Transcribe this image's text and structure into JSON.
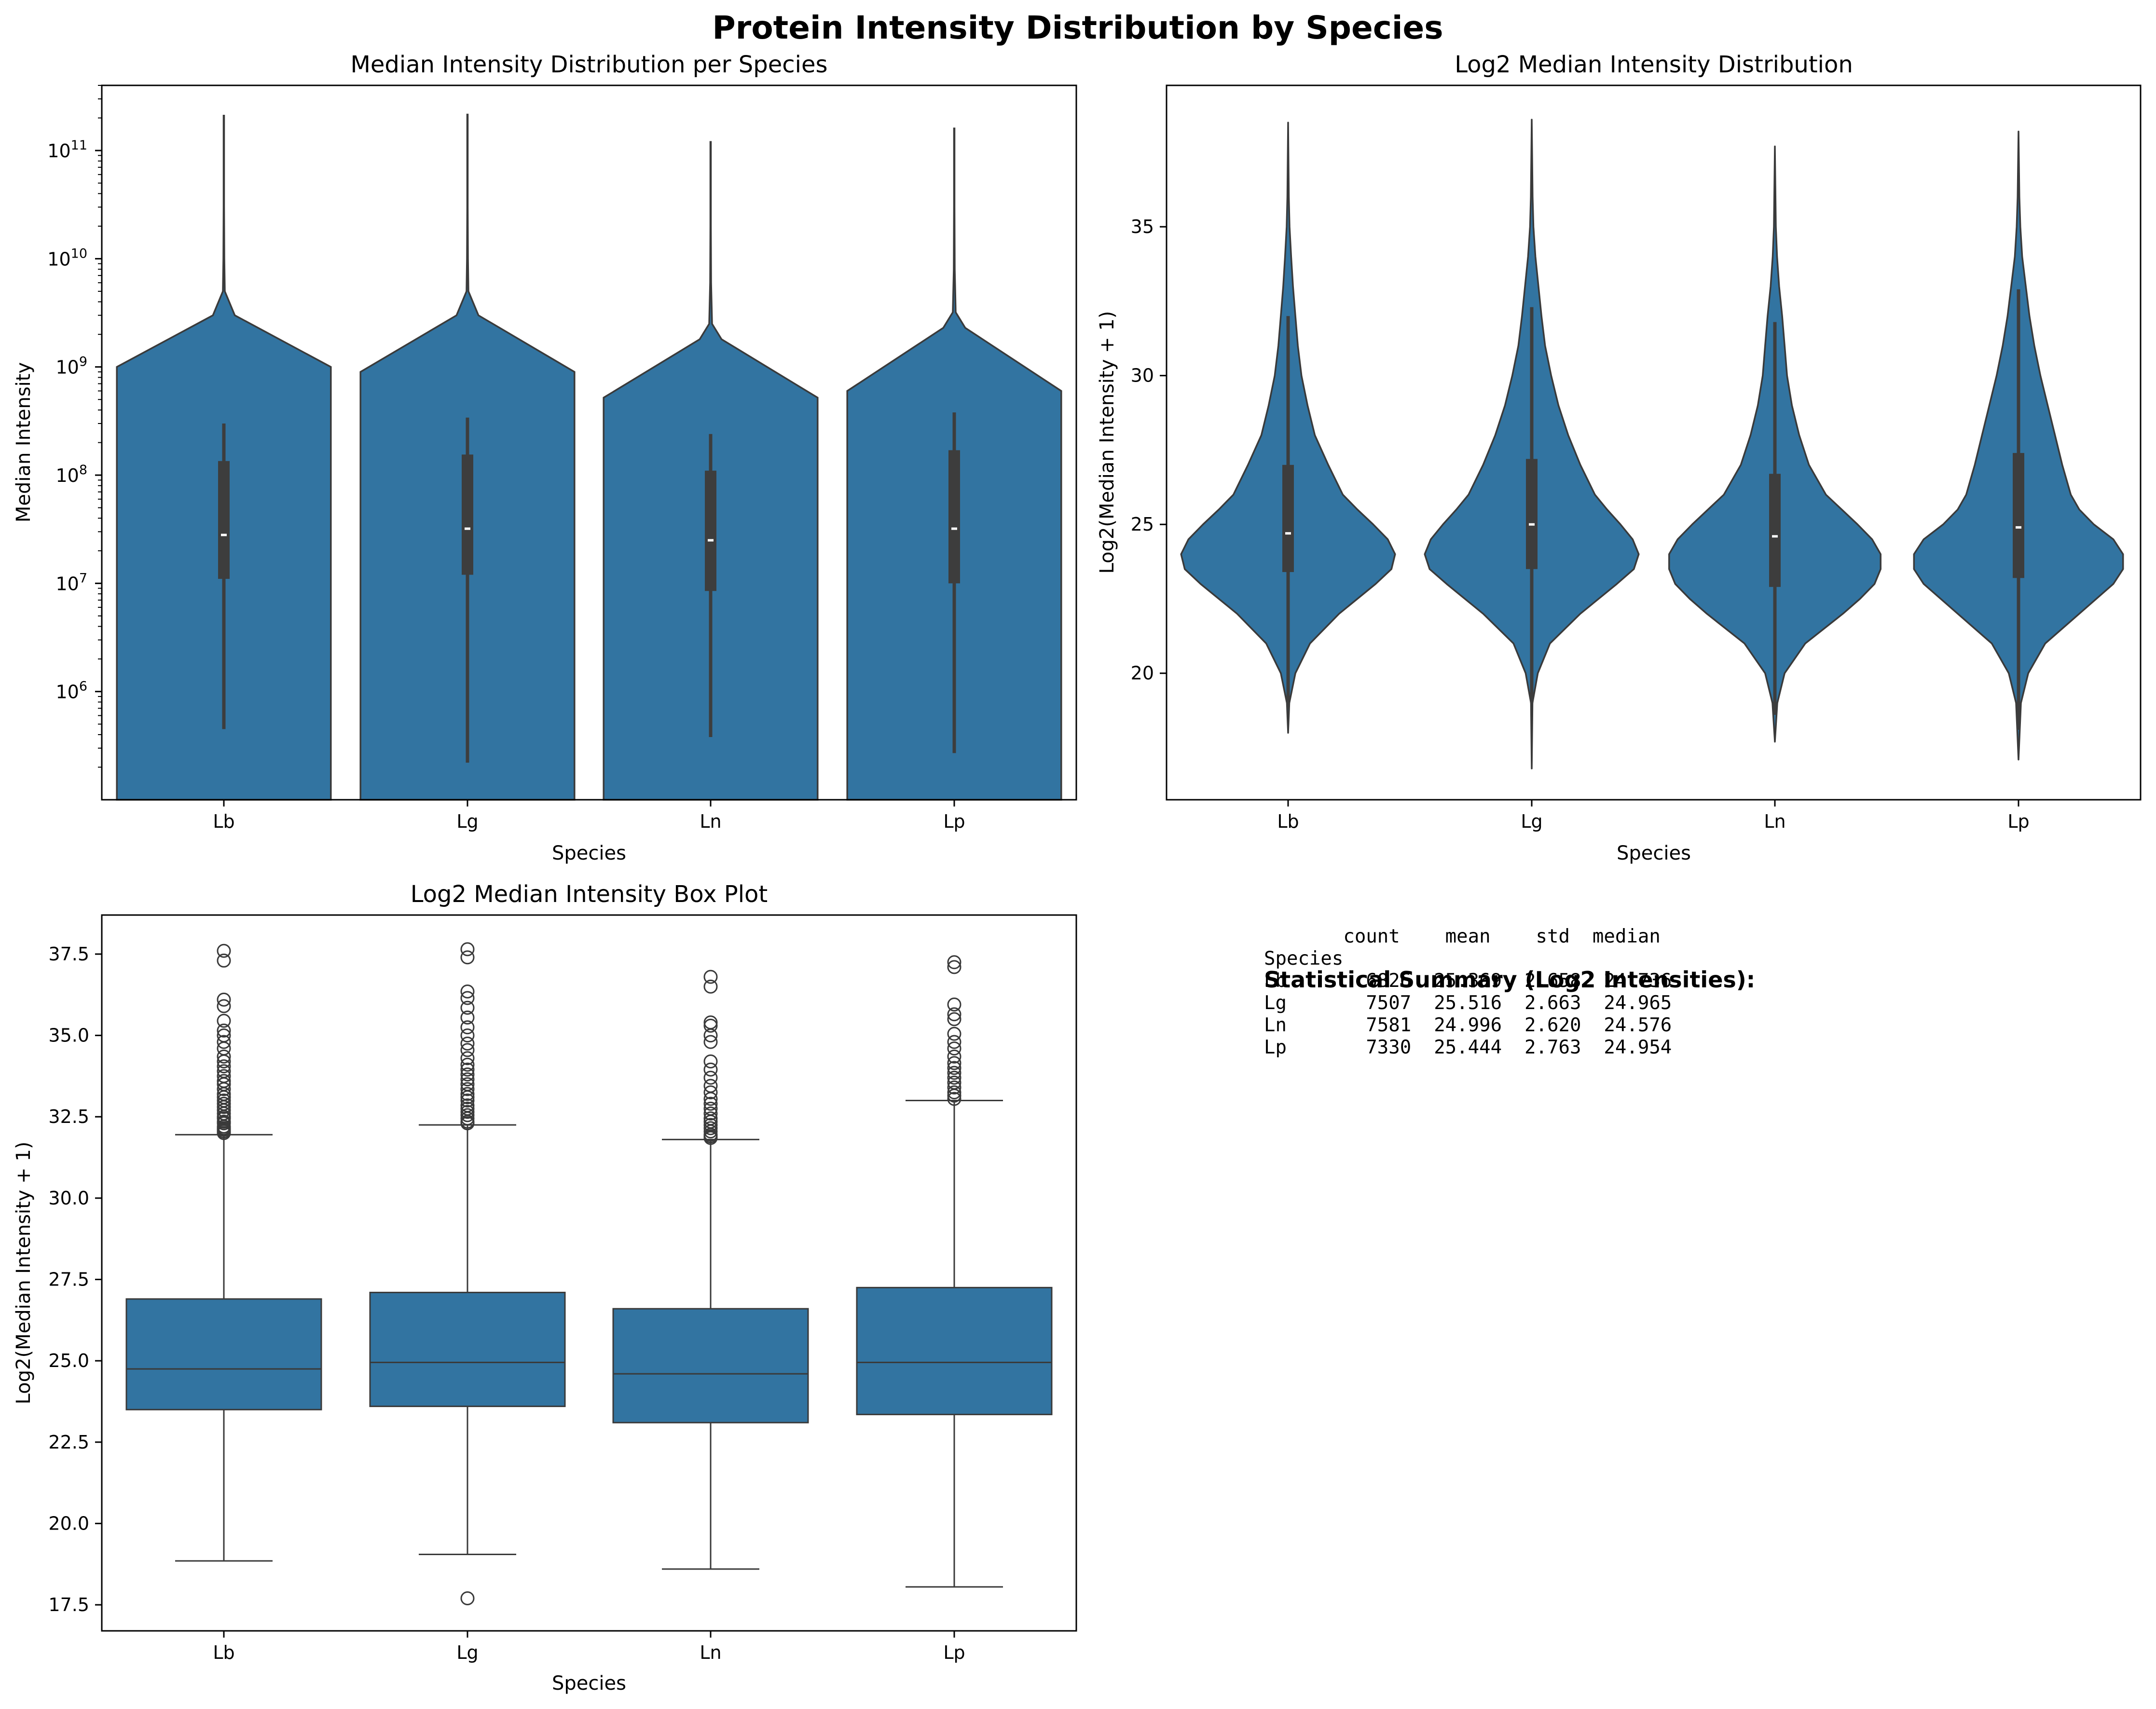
{
  "figure": {
    "suptitle": "Protein Intensity Distribution by Species"
  },
  "colors": {
    "fill": "#3274a1",
    "edge": "#3a3a3a",
    "inner_box": "#3d3d3d",
    "median_dot": "#ffffff"
  },
  "chart_data": [
    {
      "id": "violin_raw",
      "type": "violin",
      "title": "Median Intensity Distribution per Species",
      "xlabel": "Species",
      "ylabel": "Median Intensity",
      "yscale": "log",
      "categories": [
        "Lb",
        "Lg",
        "Ln",
        "Lp"
      ],
      "ylim": [
        100000,
        400000000000
      ],
      "y_ticks": [
        {
          "base": "10",
          "exp": "6",
          "value": 1000000
        },
        {
          "base": "10",
          "exp": "7",
          "value": 10000000
        },
        {
          "base": "10",
          "exp": "8",
          "value": 100000000
        },
        {
          "base": "10",
          "exp": "9",
          "value": 1000000000
        },
        {
          "base": "10",
          "exp": "10",
          "value": 10000000000
        },
        {
          "base": "10",
          "exp": "11",
          "value": 100000000000
        }
      ],
      "groups": [
        {
          "name": "Lb",
          "max": 210000000000,
          "q1": 11000000,
          "median": 28000000,
          "q3": 135000000,
          "whisker_low": 450000,
          "whisker_high": 300000000,
          "shoulder_top": 1000000000,
          "peak": 3000000000,
          "profile": [
            [
              0.002,
              210000000000
            ],
            [
              0.002,
              30000000000
            ],
            [
              0.004,
              10000000000
            ],
            [
              0.008,
              5000000000
            ],
            [
              0.09,
              3000000000
            ],
            [
              0.88,
              1000000000
            ],
            [
              0.88,
              100000
            ]
          ]
        },
        {
          "name": "Lg",
          "max": 215000000000,
          "q1": 12000000,
          "median": 32000000,
          "q3": 155000000,
          "whisker_low": 220000,
          "whisker_high": 340000000,
          "shoulder_top": 900000000,
          "peak": 3000000000,
          "profile": [
            [
              0.002,
              215000000000
            ],
            [
              0.002,
              30000000000
            ],
            [
              0.004,
              10000000000
            ],
            [
              0.008,
              5000000000
            ],
            [
              0.09,
              3000000000
            ],
            [
              0.88,
              900000000
            ],
            [
              0.88,
              100000
            ]
          ]
        },
        {
          "name": "Ln",
          "max": 120000000000,
          "q1": 8500000,
          "median": 25000000,
          "q3": 110000000,
          "whisker_low": 380000,
          "whisker_high": 240000000,
          "shoulder_top": 520000000,
          "peak": 1800000000,
          "profile": [
            [
              0.002,
              120000000000
            ],
            [
              0.002,
              20000000000
            ],
            [
              0.004,
              6000000000
            ],
            [
              0.012,
              2500000000
            ],
            [
              0.09,
              1800000000
            ],
            [
              0.88,
              520000000
            ],
            [
              0.88,
              100000
            ]
          ]
        },
        {
          "name": "Lp",
          "max": 160000000000,
          "q1": 10000000,
          "median": 32000000,
          "q3": 170000000,
          "whisker_low": 270000,
          "whisker_high": 380000000,
          "shoulder_top": 600000000,
          "peak": 2300000000,
          "profile": [
            [
              0.002,
              160000000000
            ],
            [
              0.002,
              30000000000
            ],
            [
              0.004,
              8000000000
            ],
            [
              0.012,
              3200000000
            ],
            [
              0.09,
              2300000000
            ],
            [
              0.88,
              600000000
            ],
            [
              0.88,
              100000
            ]
          ]
        }
      ]
    },
    {
      "id": "violin_log2",
      "type": "violin",
      "title": "Log2 Median Intensity Distribution",
      "xlabel": "Species",
      "ylabel": "Log2(Median Intensity + 1)",
      "categories": [
        "Lb",
        "Lg",
        "Ln",
        "Lp"
      ],
      "ylim": [
        15.75,
        39.75
      ],
      "y_ticks": [
        "20",
        "25",
        "30",
        "35"
      ],
      "groups": [
        {
          "name": "Lb",
          "min": 18.0,
          "max": 38.5,
          "q1": 23.4,
          "median": 24.7,
          "q3": 27.0,
          "whisker_low": 18.8,
          "whisker_high": 32.0,
          "profile": [
            [
              18.0,
              0.0
            ],
            [
              19.0,
              0.01
            ],
            [
              20.0,
              0.06
            ],
            [
              21.0,
              0.18
            ],
            [
              22.0,
              0.42
            ],
            [
              23.0,
              0.72
            ],
            [
              23.5,
              0.85
            ],
            [
              24.0,
              0.88
            ],
            [
              24.5,
              0.82
            ],
            [
              25.0,
              0.7
            ],
            [
              25.5,
              0.57
            ],
            [
              26.0,
              0.45
            ],
            [
              27.0,
              0.33
            ],
            [
              28.0,
              0.22
            ],
            [
              29.0,
              0.16
            ],
            [
              30.0,
              0.11
            ],
            [
              31.0,
              0.08
            ],
            [
              32.0,
              0.06
            ],
            [
              33.0,
              0.04
            ],
            [
              34.0,
              0.025
            ],
            [
              35.0,
              0.012
            ],
            [
              36.0,
              0.006
            ],
            [
              38.5,
              0.0
            ]
          ]
        },
        {
          "name": "Lg",
          "min": 16.8,
          "max": 38.6,
          "q1": 23.5,
          "median": 25.0,
          "q3": 27.2,
          "whisker_low": 19.0,
          "whisker_high": 32.3,
          "profile": [
            [
              16.8,
              0.0
            ],
            [
              19.0,
              0.006
            ],
            [
              20.0,
              0.05
            ],
            [
              21.0,
              0.15
            ],
            [
              22.0,
              0.4
            ],
            [
              23.0,
              0.7
            ],
            [
              23.5,
              0.84
            ],
            [
              24.0,
              0.88
            ],
            [
              24.5,
              0.83
            ],
            [
              25.0,
              0.73
            ],
            [
              25.5,
              0.62
            ],
            [
              26.0,
              0.52
            ],
            [
              27.0,
              0.4
            ],
            [
              28.0,
              0.3
            ],
            [
              29.0,
              0.22
            ],
            [
              30.0,
              0.16
            ],
            [
              31.0,
              0.11
            ],
            [
              32.0,
              0.08
            ],
            [
              33.0,
              0.055
            ],
            [
              34.0,
              0.03
            ],
            [
              35.0,
              0.014
            ],
            [
              36.0,
              0.007
            ],
            [
              38.6,
              0.0
            ]
          ]
        },
        {
          "name": "Ln",
          "min": 17.7,
          "max": 37.7,
          "q1": 22.9,
          "median": 24.6,
          "q3": 26.7,
          "whisker_low": 18.6,
          "whisker_high": 31.8,
          "profile": [
            [
              17.7,
              0.0
            ],
            [
              19.0,
              0.02
            ],
            [
              20.0,
              0.08
            ],
            [
              21.0,
              0.25
            ],
            [
              22.0,
              0.56
            ],
            [
              22.5,
              0.7
            ],
            [
              23.0,
              0.82
            ],
            [
              23.5,
              0.87
            ],
            [
              24.0,
              0.87
            ],
            [
              24.5,
              0.8
            ],
            [
              25.0,
              0.68
            ],
            [
              25.5,
              0.55
            ],
            [
              26.0,
              0.42
            ],
            [
              27.0,
              0.28
            ],
            [
              28.0,
              0.2
            ],
            [
              29.0,
              0.14
            ],
            [
              30.0,
              0.1
            ],
            [
              31.0,
              0.08
            ],
            [
              32.0,
              0.06
            ],
            [
              33.0,
              0.035
            ],
            [
              34.0,
              0.018
            ],
            [
              35.0,
              0.008
            ],
            [
              37.7,
              0.0
            ]
          ]
        },
        {
          "name": "Lp",
          "min": 17.1,
          "max": 38.2,
          "q1": 23.2,
          "median": 24.9,
          "q3": 27.4,
          "whisker_low": 18.1,
          "whisker_high": 32.9,
          "profile": [
            [
              17.1,
              0.0
            ],
            [
              19.0,
              0.02
            ],
            [
              20.0,
              0.08
            ],
            [
              21.0,
              0.22
            ],
            [
              22.0,
              0.5
            ],
            [
              23.0,
              0.78
            ],
            [
              23.5,
              0.86
            ],
            [
              24.0,
              0.86
            ],
            [
              24.5,
              0.78
            ],
            [
              25.0,
              0.62
            ],
            [
              25.5,
              0.5
            ],
            [
              26.0,
              0.43
            ],
            [
              27.0,
              0.36
            ],
            [
              28.0,
              0.3
            ],
            [
              29.0,
              0.24
            ],
            [
              30.0,
              0.18
            ],
            [
              31.0,
              0.13
            ],
            [
              32.0,
              0.09
            ],
            [
              33.0,
              0.06
            ],
            [
              34.0,
              0.03
            ],
            [
              35.0,
              0.015
            ],
            [
              36.0,
              0.007
            ],
            [
              38.2,
              0.0
            ]
          ]
        }
      ]
    },
    {
      "id": "boxplot_log2",
      "type": "box",
      "title": "Log2 Median Intensity Box Plot",
      "xlabel": "Species",
      "ylabel": "Log2(Median Intensity + 1)",
      "categories": [
        "Lb",
        "Lg",
        "Ln",
        "Lp"
      ],
      "ylim": [
        16.7,
        38.7
      ],
      "y_ticks": [
        "17.5",
        "20.0",
        "22.5",
        "25.0",
        "27.5",
        "30.0",
        "32.5",
        "35.0",
        "37.5"
      ],
      "groups": [
        {
          "name": "Lb",
          "whisker_low": 18.85,
          "q1": 23.5,
          "median": 24.75,
          "q3": 26.9,
          "whisker_high": 31.95,
          "outliers": [
            32.0,
            32.05,
            32.1,
            32.15,
            32.2,
            32.3,
            32.35,
            32.45,
            32.5,
            32.6,
            32.7,
            32.8,
            32.9,
            33.0,
            33.1,
            33.2,
            33.35,
            33.5,
            33.6,
            33.75,
            33.9,
            34.05,
            34.2,
            34.35,
            34.6,
            34.8,
            35.0,
            35.15,
            35.45,
            35.9,
            36.1,
            37.3,
            37.6
          ]
        },
        {
          "name": "Lg",
          "whisker_low": 19.05,
          "q1": 23.6,
          "median": 24.95,
          "q3": 27.1,
          "whisker_high": 32.25,
          "outliers": [
            17.7,
            32.3,
            32.35,
            32.45,
            32.55,
            32.65,
            32.75,
            32.85,
            33.0,
            33.1,
            33.2,
            33.35,
            33.5,
            33.65,
            33.8,
            33.95,
            34.1,
            34.3,
            34.55,
            34.75,
            35.0,
            35.25,
            35.55,
            35.85,
            36.15,
            36.35,
            37.4,
            37.65
          ]
        },
        {
          "name": "Ln",
          "whisker_low": 18.6,
          "q1": 23.1,
          "median": 24.6,
          "q3": 26.6,
          "whisker_high": 31.8,
          "outliers": [
            31.85,
            31.9,
            31.95,
            32.05,
            32.15,
            32.25,
            32.35,
            32.45,
            32.6,
            32.75,
            32.9,
            33.05,
            33.25,
            33.45,
            33.7,
            33.95,
            34.2,
            34.8,
            35.0,
            35.3,
            35.4,
            36.5,
            36.8
          ]
        },
        {
          "name": "Lp",
          "whisker_low": 18.05,
          "q1": 23.35,
          "median": 24.95,
          "q3": 27.25,
          "whisker_high": 33.0,
          "outliers": [
            33.05,
            33.15,
            33.25,
            33.4,
            33.55,
            33.7,
            33.85,
            34.0,
            34.15,
            34.35,
            34.6,
            34.8,
            35.05,
            35.5,
            35.65,
            35.95,
            37.1,
            37.25
          ]
        }
      ]
    },
    {
      "id": "stats_table",
      "type": "table",
      "title": "Statistical Summary (Log2 Intensities):",
      "index_name": "Species",
      "columns": [
        "count",
        "mean",
        "std",
        "median"
      ],
      "rows": [
        {
          "Species": "Lb",
          "count": "6826",
          "mean": "25.369",
          "std": "2.658",
          "median": "24.736"
        },
        {
          "Species": "Lg",
          "count": "7507",
          "mean": "25.516",
          "std": "2.663",
          "median": "24.965"
        },
        {
          "Species": "Ln",
          "count": "7581",
          "mean": "24.996",
          "std": "2.620",
          "median": "24.576"
        },
        {
          "Species": "Lp",
          "count": "7330",
          "mean": "25.444",
          "std": "2.763",
          "median": "24.954"
        }
      ],
      "header_line": "       count    mean    std  median",
      "index_line": "Species",
      "row_lines": [
        "Lb       6826  25.369  2.658  24.736",
        "Lg       7507  25.516  2.663  24.965",
        "Ln       7581  24.996  2.620  24.576",
        "Lp       7330  25.444  2.763  24.954"
      ]
    }
  ]
}
